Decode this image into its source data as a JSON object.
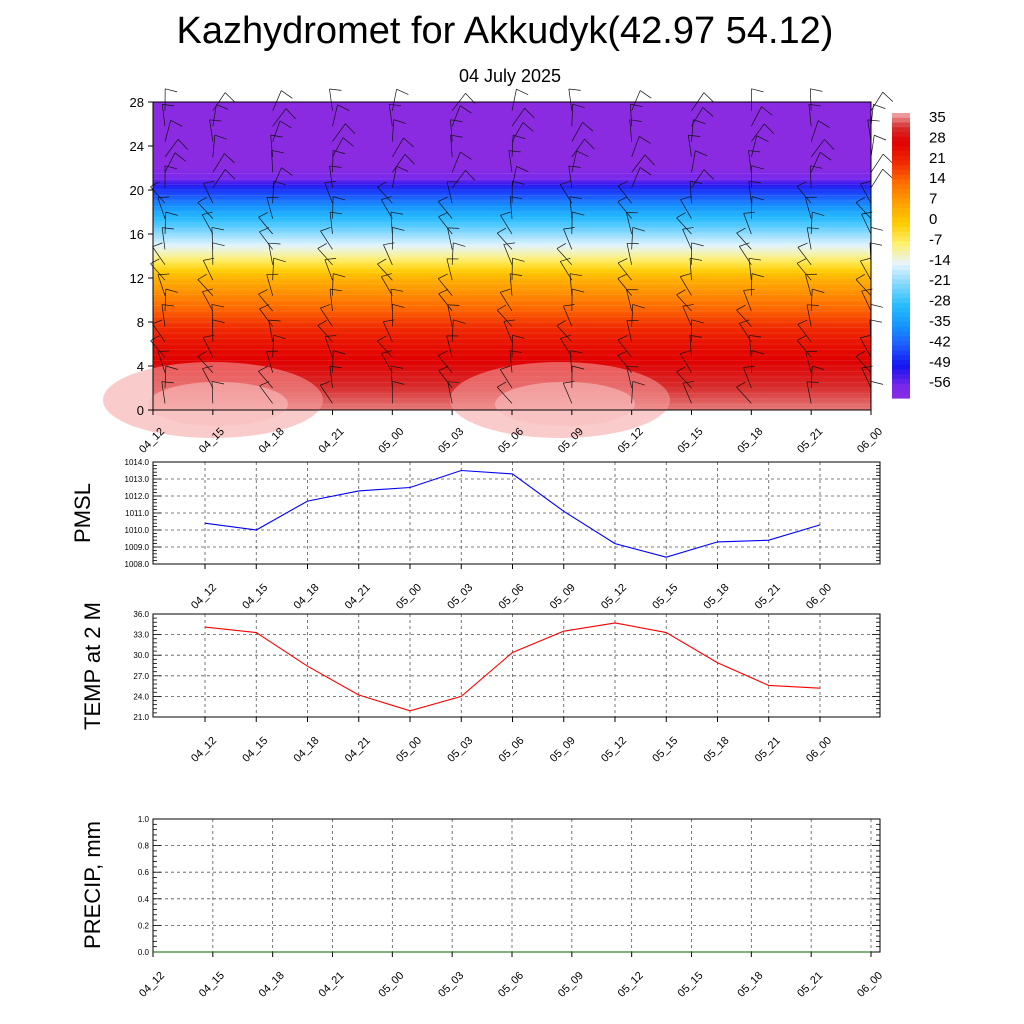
{
  "header": {
    "title": "Kazhydromet for Akkudyk(42.97 54.12)",
    "date": "04 July 2025"
  },
  "chart_data": [
    {
      "type": "heatmap",
      "title": "",
      "x": [
        "04_12",
        "04_15",
        "04_18",
        "04_21",
        "05_00",
        "05_03",
        "05_06",
        "05_09",
        "05_12",
        "05_15",
        "05_18",
        "05_21",
        "06_00"
      ],
      "ylim": [
        0,
        28
      ],
      "yticks": [
        0,
        4,
        8,
        12,
        16,
        20,
        24,
        28
      ],
      "colorbar": {
        "labels": [
          "35",
          "28",
          "21",
          "14",
          "7",
          "0",
          "-7",
          "-14",
          "-21",
          "-28",
          "-35",
          "-42",
          "-49",
          "-56"
        ],
        "range": [
          -60,
          38
        ]
      },
      "level_temps": [
        {
          "level": 0,
          "temp": 36
        },
        {
          "level": 2,
          "temp": 33
        },
        {
          "level": 4,
          "temp": 29
        },
        {
          "level": 6,
          "temp": 25
        },
        {
          "level": 8,
          "temp": 19
        },
        {
          "level": 10,
          "temp": 12
        },
        {
          "level": 12,
          "temp": 4
        },
        {
          "level": 14,
          "temp": -9
        },
        {
          "level": 16,
          "temp": -20
        },
        {
          "level": 18,
          "temp": -32
        },
        {
          "level": 20,
          "temp": -46
        },
        {
          "level": 21,
          "temp": -56
        },
        {
          "level": 22,
          "temp": -60
        },
        {
          "level": 28,
          "temp": -60
        }
      ],
      "wind_barbs": true
    },
    {
      "type": "line",
      "ylabel": "PMSL",
      "x": [
        "04_12",
        "04_15",
        "04_18",
        "04_21",
        "05_00",
        "05_03",
        "05_06",
        "05_09",
        "05_12",
        "05_15",
        "05_18",
        "05_21",
        "06_00"
      ],
      "series": [
        {
          "values": [
            1010.4,
            1010.0,
            1011.7,
            1012.3,
            1012.5,
            1013.5,
            1013.3,
            1011.1,
            1009.2,
            1008.4,
            1009.3,
            1009.4,
            1010.3
          ]
        }
      ],
      "ylim": [
        1008.0,
        1014.0
      ],
      "yticks": [
        "1008.0",
        "1009.0",
        "1010.0",
        "1011.0",
        "1012.0",
        "1013.0",
        "1014.0"
      ],
      "grid": true,
      "color": "#0000ff"
    },
    {
      "type": "line",
      "ylabel": "TEMP at 2 M",
      "x": [
        "04_12",
        "04_15",
        "04_18",
        "04_21",
        "05_00",
        "05_03",
        "05_06",
        "05_09",
        "05_12",
        "05_15",
        "05_18",
        "05_21",
        "06_00"
      ],
      "series": [
        {
          "values": [
            34.1,
            33.3,
            28.4,
            24.2,
            21.9,
            24.0,
            30.4,
            33.5,
            34.7,
            33.3,
            28.9,
            25.6,
            25.2
          ]
        }
      ],
      "ylim": [
        21.0,
        36.0
      ],
      "yticks": [
        "21.0",
        "24.0",
        "27.0",
        "30.0",
        "33.0",
        "36.0"
      ],
      "grid": true,
      "color": "#ff0000"
    },
    {
      "type": "line",
      "ylabel": "PRECIP, mm",
      "x": [
        "04_12",
        "04_15",
        "04_18",
        "04_21",
        "05_00",
        "05_03",
        "05_06",
        "05_09",
        "05_12",
        "05_15",
        "05_18",
        "05_21",
        "06_00"
      ],
      "series": [
        {
          "values": [
            0,
            0,
            0,
            0,
            0,
            0,
            0,
            0,
            0,
            0,
            0,
            0,
            0
          ]
        }
      ],
      "ylim": [
        0.0,
        1.0
      ],
      "yticks": [
        "0.0",
        "0.2",
        "0.4",
        "0.6",
        "0.8",
        "1.0"
      ],
      "grid": true,
      "color": "#006400"
    }
  ]
}
